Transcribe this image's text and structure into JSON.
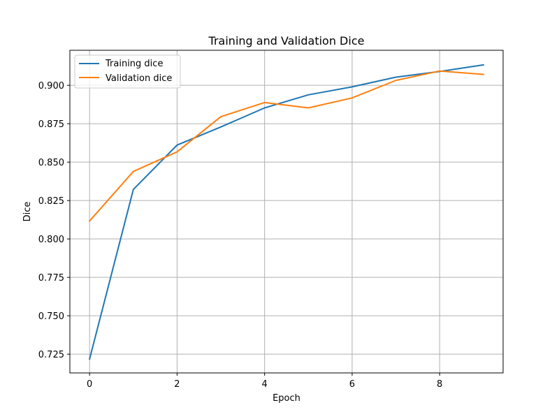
{
  "chart_data": {
    "type": "line",
    "title": "Training and Validation Dice",
    "xlabel": "Epoch",
    "ylabel": "Dice",
    "x": [
      0,
      1,
      2,
      3,
      4,
      5,
      6,
      7,
      8,
      9
    ],
    "xlim": [
      -0.45,
      9.45
    ],
    "ylim": [
      0.7128,
      0.9228
    ],
    "xticks": [
      0,
      2,
      4,
      6,
      8
    ],
    "xtick_labels": [
      "0",
      "2",
      "4",
      "6",
      "8"
    ],
    "yticks": [
      0.725,
      0.75,
      0.775,
      0.8,
      0.825,
      0.85,
      0.875,
      0.9
    ],
    "ytick_labels": [
      "0.725",
      "0.750",
      "0.775",
      "0.800",
      "0.825",
      "0.850",
      "0.875",
      "0.900"
    ],
    "grid": true,
    "legend_position": "upper-left",
    "series": [
      {
        "name": "Training dice",
        "color": "#1f77b4",
        "values": [
          0.7218,
          0.8322,
          0.8611,
          0.8729,
          0.8853,
          0.8938,
          0.899,
          0.9053,
          0.909,
          0.9133
        ]
      },
      {
        "name": "Validation dice",
        "color": "#ff7f0e",
        "values": [
          0.8117,
          0.8439,
          0.8567,
          0.8796,
          0.8888,
          0.8853,
          0.8918,
          0.9032,
          0.9093,
          0.9071
        ]
      }
    ]
  }
}
